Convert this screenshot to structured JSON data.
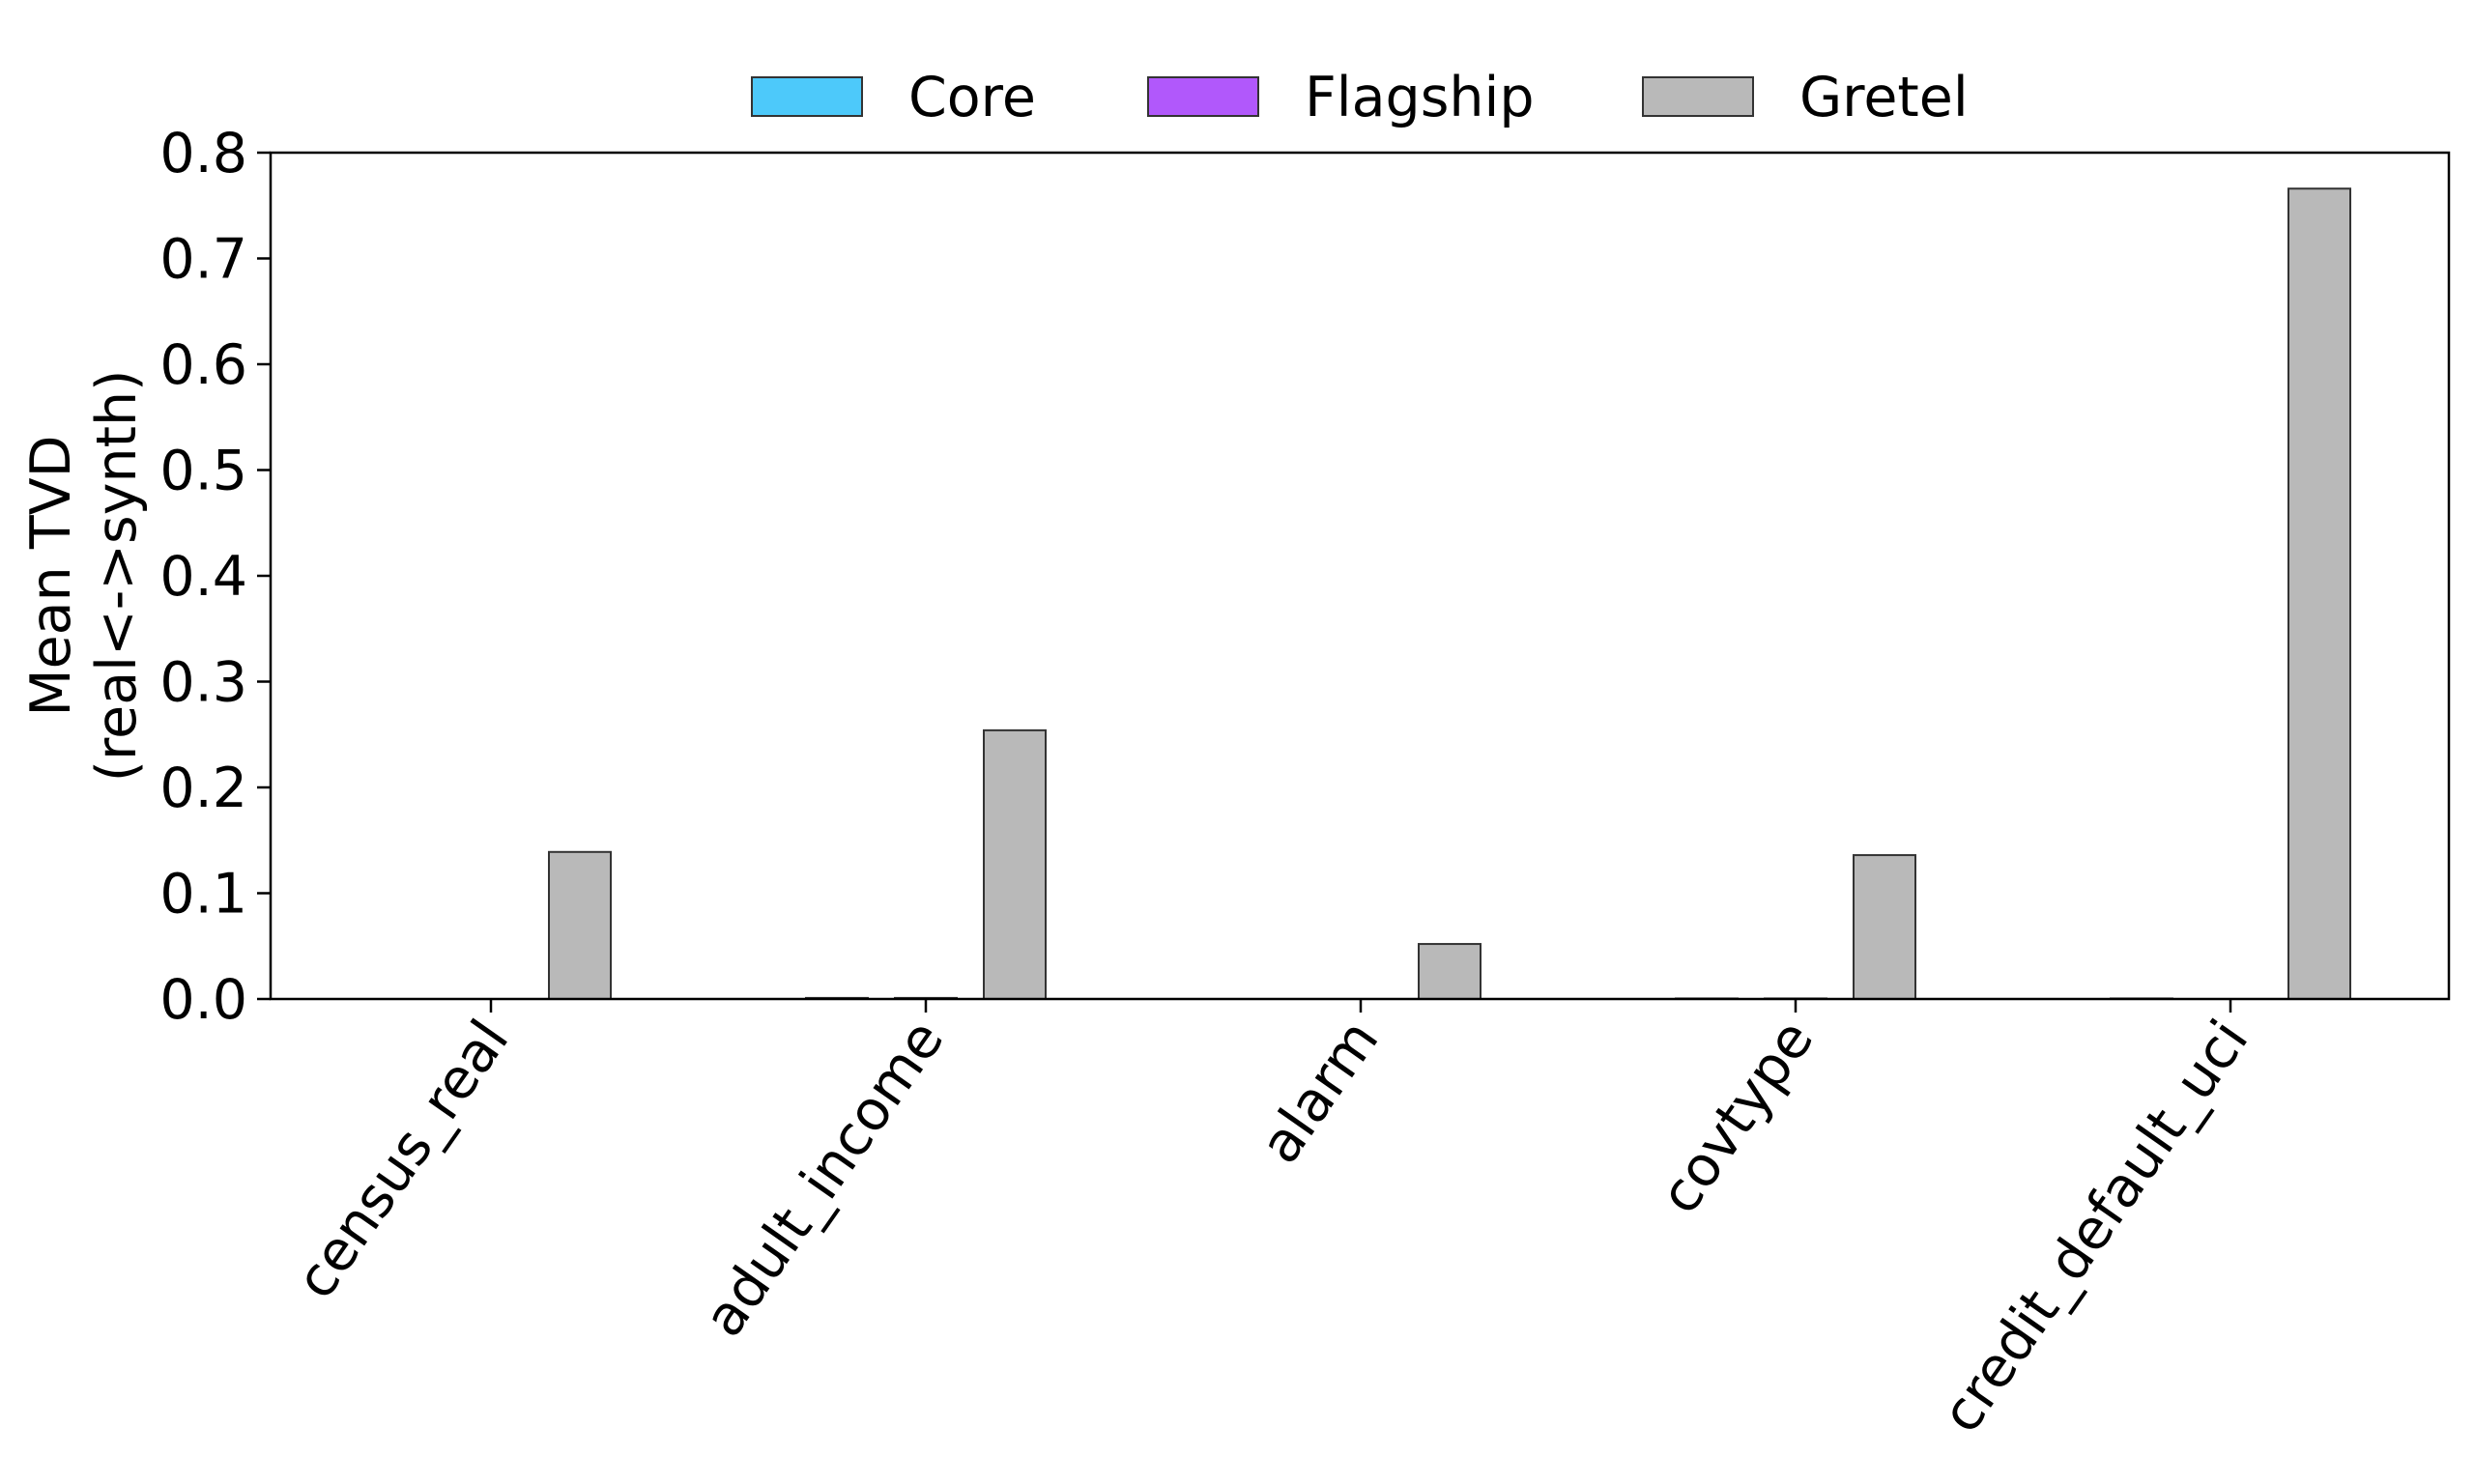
{
  "chart_data": {
    "type": "bar",
    "categories": [
      "census_real",
      "adult_income",
      "alarm",
      "covtype",
      "credit_default_uci"
    ],
    "series": [
      {
        "name": "Core",
        "color": "#4dc9fa",
        "values": [
          0.0,
          0.001,
          0.0,
          0.0005,
          0.0005
        ]
      },
      {
        "name": "Flagship",
        "color": "#b158fb",
        "values": [
          0.0,
          0.001,
          0.0,
          0.0005,
          0.0
        ]
      },
      {
        "name": "Gretel",
        "color": "#b9b9b9",
        "values": [
          0.139,
          0.254,
          0.052,
          0.136,
          0.766
        ]
      }
    ],
    "ylabel_line1": "Mean TVD",
    "ylabel_line2": "(real<->synth)",
    "ylim": [
      0.0,
      0.8
    ],
    "yticks": [
      "0.0",
      "0.1",
      "0.2",
      "0.3",
      "0.4",
      "0.5",
      "0.6",
      "0.7",
      "0.8"
    ],
    "grid": false,
    "legend_position": "top-center"
  }
}
